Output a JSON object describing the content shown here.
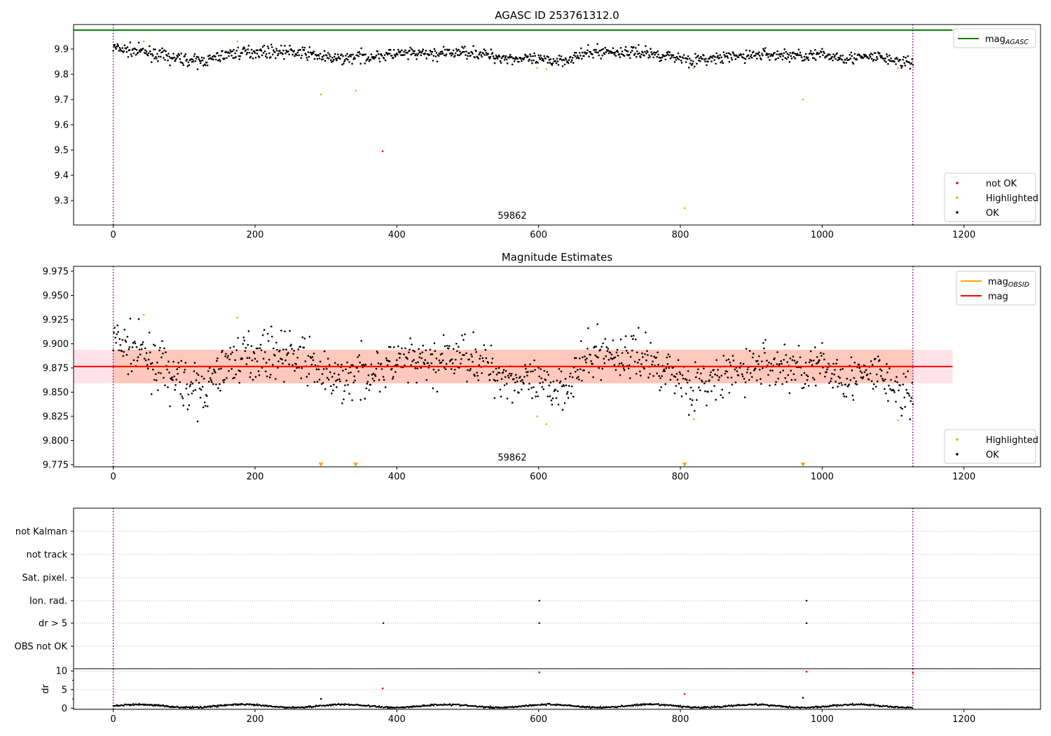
{
  "colors": {
    "ok": "#000000",
    "highlighted": "#ffa500",
    "not_ok": "#ff0000",
    "agasc": "#008000",
    "mag": "#ff0000",
    "mag_obsid": "#ffa500",
    "obs_boundary": "#800080",
    "band_outer": "#ffc0cb",
    "band_inner": "#ffa07a"
  },
  "chart_data": [
    {
      "type": "scatter",
      "title": "AGASC ID 253761312.0",
      "xlim": [
        -56,
        1308
      ],
      "ylim": [
        9.203,
        9.997
      ],
      "xticks": [
        "0",
        "200",
        "400",
        "600",
        "800",
        "1000",
        "1200"
      ],
      "yticks": [
        "9.3",
        "9.4",
        "9.5",
        "9.6",
        "9.7",
        "9.8",
        "9.9"
      ],
      "obsid_label": "59862",
      "obsid_label_x": 562,
      "obs_boundaries": [
        0,
        1128
      ],
      "mag_agasc": 9.975,
      "mag_agasc_xrange": [
        -56,
        1184
      ],
      "ok_trend_step": 20,
      "ok_trend": [
        9.905,
        9.895,
        9.89,
        9.88,
        9.865,
        9.86,
        9.85,
        9.86,
        9.88,
        9.885,
        9.89,
        9.89,
        9.89,
        9.885,
        9.88,
        9.865,
        9.86,
        9.87,
        9.87,
        9.875,
        9.88,
        9.88,
        9.88,
        9.88,
        9.885,
        9.89,
        9.88,
        9.87,
        9.865,
        9.86,
        9.855,
        9.855,
        9.86,
        9.875,
        9.89,
        9.89,
        9.885,
        9.89,
        9.88,
        9.875,
        9.865,
        9.855,
        9.86,
        9.865,
        9.87,
        9.875,
        9.88,
        9.875,
        9.875,
        9.875,
        9.875,
        9.87,
        9.865,
        9.865,
        9.87,
        9.855,
        9.845
      ],
      "ok_noise": 0.012,
      "highlighted": [
        [
          43,
          9.93
        ],
        [
          175,
          9.93
        ],
        [
          293,
          9.72
        ],
        [
          342,
          9.735
        ],
        [
          598,
          9.825
        ],
        [
          611,
          9.82
        ],
        [
          806,
          9.27
        ],
        [
          819,
          9.825
        ],
        [
          973,
          9.7
        ],
        [
          1107,
          9.825
        ]
      ],
      "not_ok": [
        [
          380,
          9.495
        ]
      ],
      "legend_top": [
        "mag",
        "AGASC"
      ],
      "legend_bottom": [
        "not OK",
        "Highlighted",
        "OK"
      ]
    },
    {
      "type": "scatter",
      "title": "Magnitude Estimates",
      "xlim": [
        -56,
        1308
      ],
      "ylim": [
        9.7728,
        9.98
      ],
      "xticks": [
        "0",
        "200",
        "400",
        "600",
        "800",
        "1000",
        "1200"
      ],
      "yticks": [
        "9.775",
        "9.800",
        "9.825",
        "9.850",
        "9.875",
        "9.900",
        "9.925",
        "9.950",
        "9.975"
      ],
      "obsid_label": "59862",
      "obsid_label_x": 562,
      "mag": 9.8765,
      "mag_band": [
        9.8591,
        9.8938
      ],
      "mag_xrange": [
        -56,
        1184
      ],
      "mag_obsid": 9.8765,
      "mag_obsid_band": [
        9.8591,
        9.8938
      ],
      "mag_obsid_xrange": [
        0,
        1128
      ],
      "highlighted": [
        [
          43,
          9.93
        ],
        [
          175,
          9.927
        ],
        [
          598,
          9.825
        ],
        [
          611,
          9.817
        ],
        [
          819,
          9.822
        ],
        [
          1107,
          9.821
        ]
      ],
      "highlighted_offscale": [
        293,
        342,
        806,
        973
      ],
      "legend_top": [
        [
          "mag",
          "OBSID"
        ],
        [
          "mag",
          ""
        ]
      ],
      "legend_bottom": [
        "Highlighted",
        "OK"
      ]
    },
    {
      "type": "scatter",
      "flags": [
        "not Kalman",
        "not track",
        "Sat. pixel.",
        "Ion. rad.",
        "dr > 5",
        "OBS not OK"
      ],
      "flag_points": {
        "Ion. rad.": [
          601,
          978
        ],
        "dr > 5": [
          381,
          601,
          978
        ]
      },
      "dr_ylabel": "dr",
      "dr_yticks": [
        "0",
        "5",
        "10"
      ],
      "dr_ylim": [
        -0.3,
        10.6
      ],
      "dr_baseline": 0.6,
      "dr_black": [
        [
          293,
          2.5
        ],
        [
          973,
          2.8
        ]
      ],
      "dr_red": [
        [
          380,
          5.3
        ],
        [
          601,
          9.6
        ],
        [
          806,
          3.8
        ],
        [
          978,
          9.8
        ],
        [
          1128,
          9.5
        ]
      ],
      "xticks": [
        "0",
        "200",
        "400",
        "600",
        "800",
        "1000",
        "1200"
      ]
    }
  ]
}
